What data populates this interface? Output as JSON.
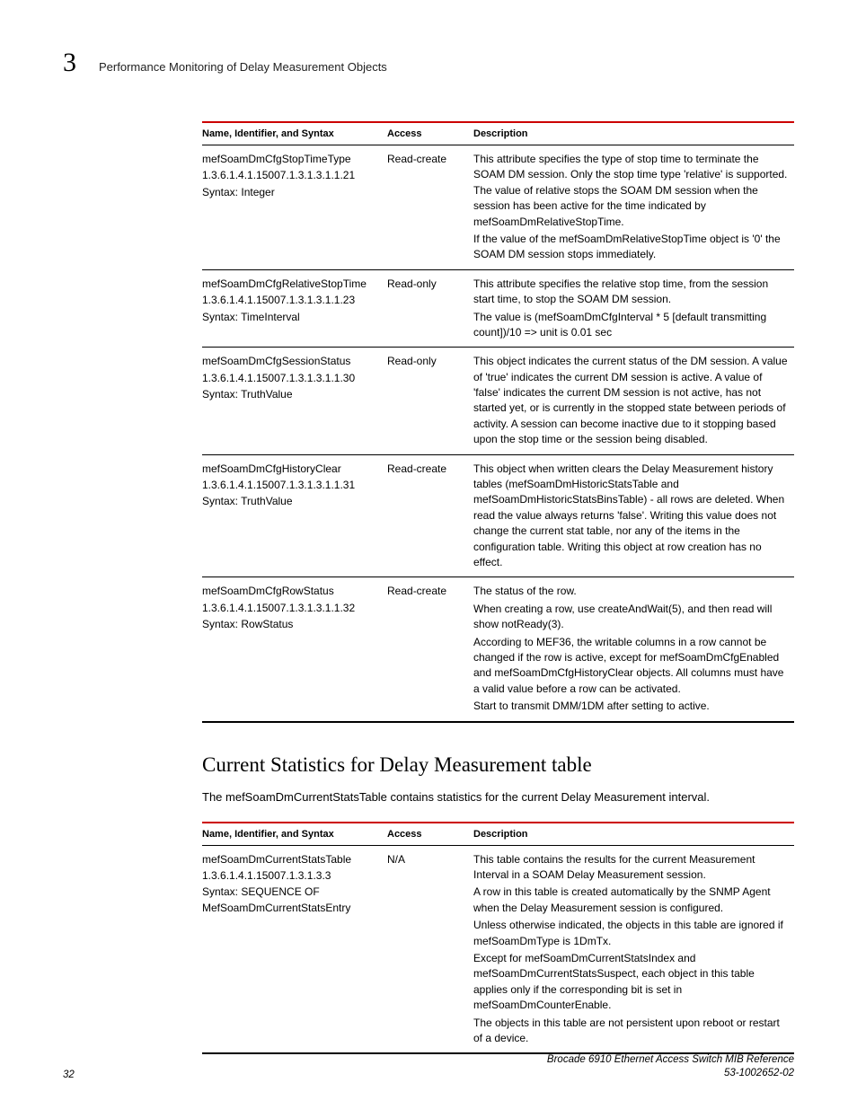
{
  "header": {
    "chapter_number": "3",
    "running_title": "Performance Monitoring of Delay Measurement Objects"
  },
  "table1": {
    "headers": {
      "c1": "Name, Identifier, and Syntax",
      "c2": "Access",
      "c3": "Description"
    },
    "rows": [
      {
        "name": "mefSoamDmCfgStopTimeType",
        "oid": "1.3.6.1.4.1.15007.1.3.1.3.1.1.21",
        "syntax": "Syntax: Integer",
        "access": "Read-create",
        "desc": [
          "This attribute specifies the type of stop time to terminate the SOAM DM session. Only the stop time type 'relative' is supported. The value of relative stops the SOAM DM session when the session has been active for the time indicated by mefSoamDmRelativeStopTime.",
          "If the value of the mefSoamDmRelativeStopTime object is '0' the SOAM DM session stops immediately."
        ]
      },
      {
        "name": "mefSoamDmCfgRelativeStopTime",
        "oid": "1.3.6.1.4.1.15007.1.3.1.3.1.1.23",
        "syntax": "Syntax: TimeInterval",
        "access": "Read-only",
        "desc": [
          "This attribute specifies the relative stop time, from the session start time, to stop the SOAM DM session.",
          "The value is (mefSoamDmCfgInterval * 5 [default transmitting count])/10 => unit is 0.01 sec"
        ]
      },
      {
        "name": "mefSoamDmCfgSessionStatus",
        "oid": "1.3.6.1.4.1.15007.1.3.1.3.1.1.30",
        "syntax": "Syntax: TruthValue",
        "access": "Read-only",
        "desc": [
          "This object indicates the current status of the DM session. A value of 'true' indicates the current DM session is active. A value of 'false' indicates the current DM session is not active, has not started yet, or is currently in the stopped state between periods of activity. A session can become inactive due to it stopping based upon the stop time or the session being disabled."
        ]
      },
      {
        "name": "mefSoamDmCfgHistoryClear",
        "oid": "1.3.6.1.4.1.15007.1.3.1.3.1.1.31",
        "syntax": "Syntax: TruthValue",
        "access": "Read-create",
        "desc": [
          "This object when written clears the Delay Measurement history tables (mefSoamDmHistoricStatsTable and mefSoamDmHistoricStatsBinsTable) - all rows are deleted. When read the value always returns 'false'. Writing this value does not change the current stat table, nor any of the items in the configuration table. Writing this object at row creation has no effect."
        ]
      },
      {
        "name": "mefSoamDmCfgRowStatus",
        "oid": "1.3.6.1.4.1.15007.1.3.1.3.1.1.32",
        "syntax": "Syntax: RowStatus",
        "access": "Read-create",
        "desc": [
          "The status of the row.",
          "When creating a row, use createAndWait(5), and then read will show notReady(3).",
          "According to MEF36, the writable columns in a row cannot be changed if the row is active, except for mefSoamDmCfgEnabled and mefSoamDmCfgHistoryClear objects. All columns must have a valid value before a row can be activated.",
          "Start to transmit DMM/1DM after setting to active."
        ]
      }
    ]
  },
  "section2": {
    "heading": "Current Statistics for Delay Measurement table",
    "intro": "The mefSoamDmCurrentStatsTable contains statistics for the current Delay Measurement interval."
  },
  "table2": {
    "headers": {
      "c1": "Name, Identifier, and Syntax",
      "c2": "Access",
      "c3": "Description"
    },
    "rows": [
      {
        "name": "mefSoamDmCurrentStatsTable",
        "oid": "1.3.6.1.4.1.15007.1.3.1.3.3",
        "syntax": "Syntax: SEQUENCE OF MefSoamDmCurrentStatsEntry",
        "access": "N/A",
        "desc": [
          "This table contains the results for the current Measurement Interval in a SOAM Delay Measurement session.",
          "A row in this table is created automatically by the SNMP Agent when the Delay Measurement session is configured.",
          "Unless otherwise indicated, the objects in this table are ignored if mefSoamDmType is 1DmTx.",
          "Except for mefSoamDmCurrentStatsIndex and mefSoamDmCurrentStatsSuspect, each object in this table applies only if the corresponding bit is set in mefSoamDmCounterEnable.",
          "The objects in this table are not persistent upon reboot or restart of a device."
        ]
      }
    ]
  },
  "footer": {
    "page_number": "32",
    "doc_title": "Brocade 6910 Ethernet Access Switch MIB Reference",
    "doc_number": "53-1002652-02"
  }
}
